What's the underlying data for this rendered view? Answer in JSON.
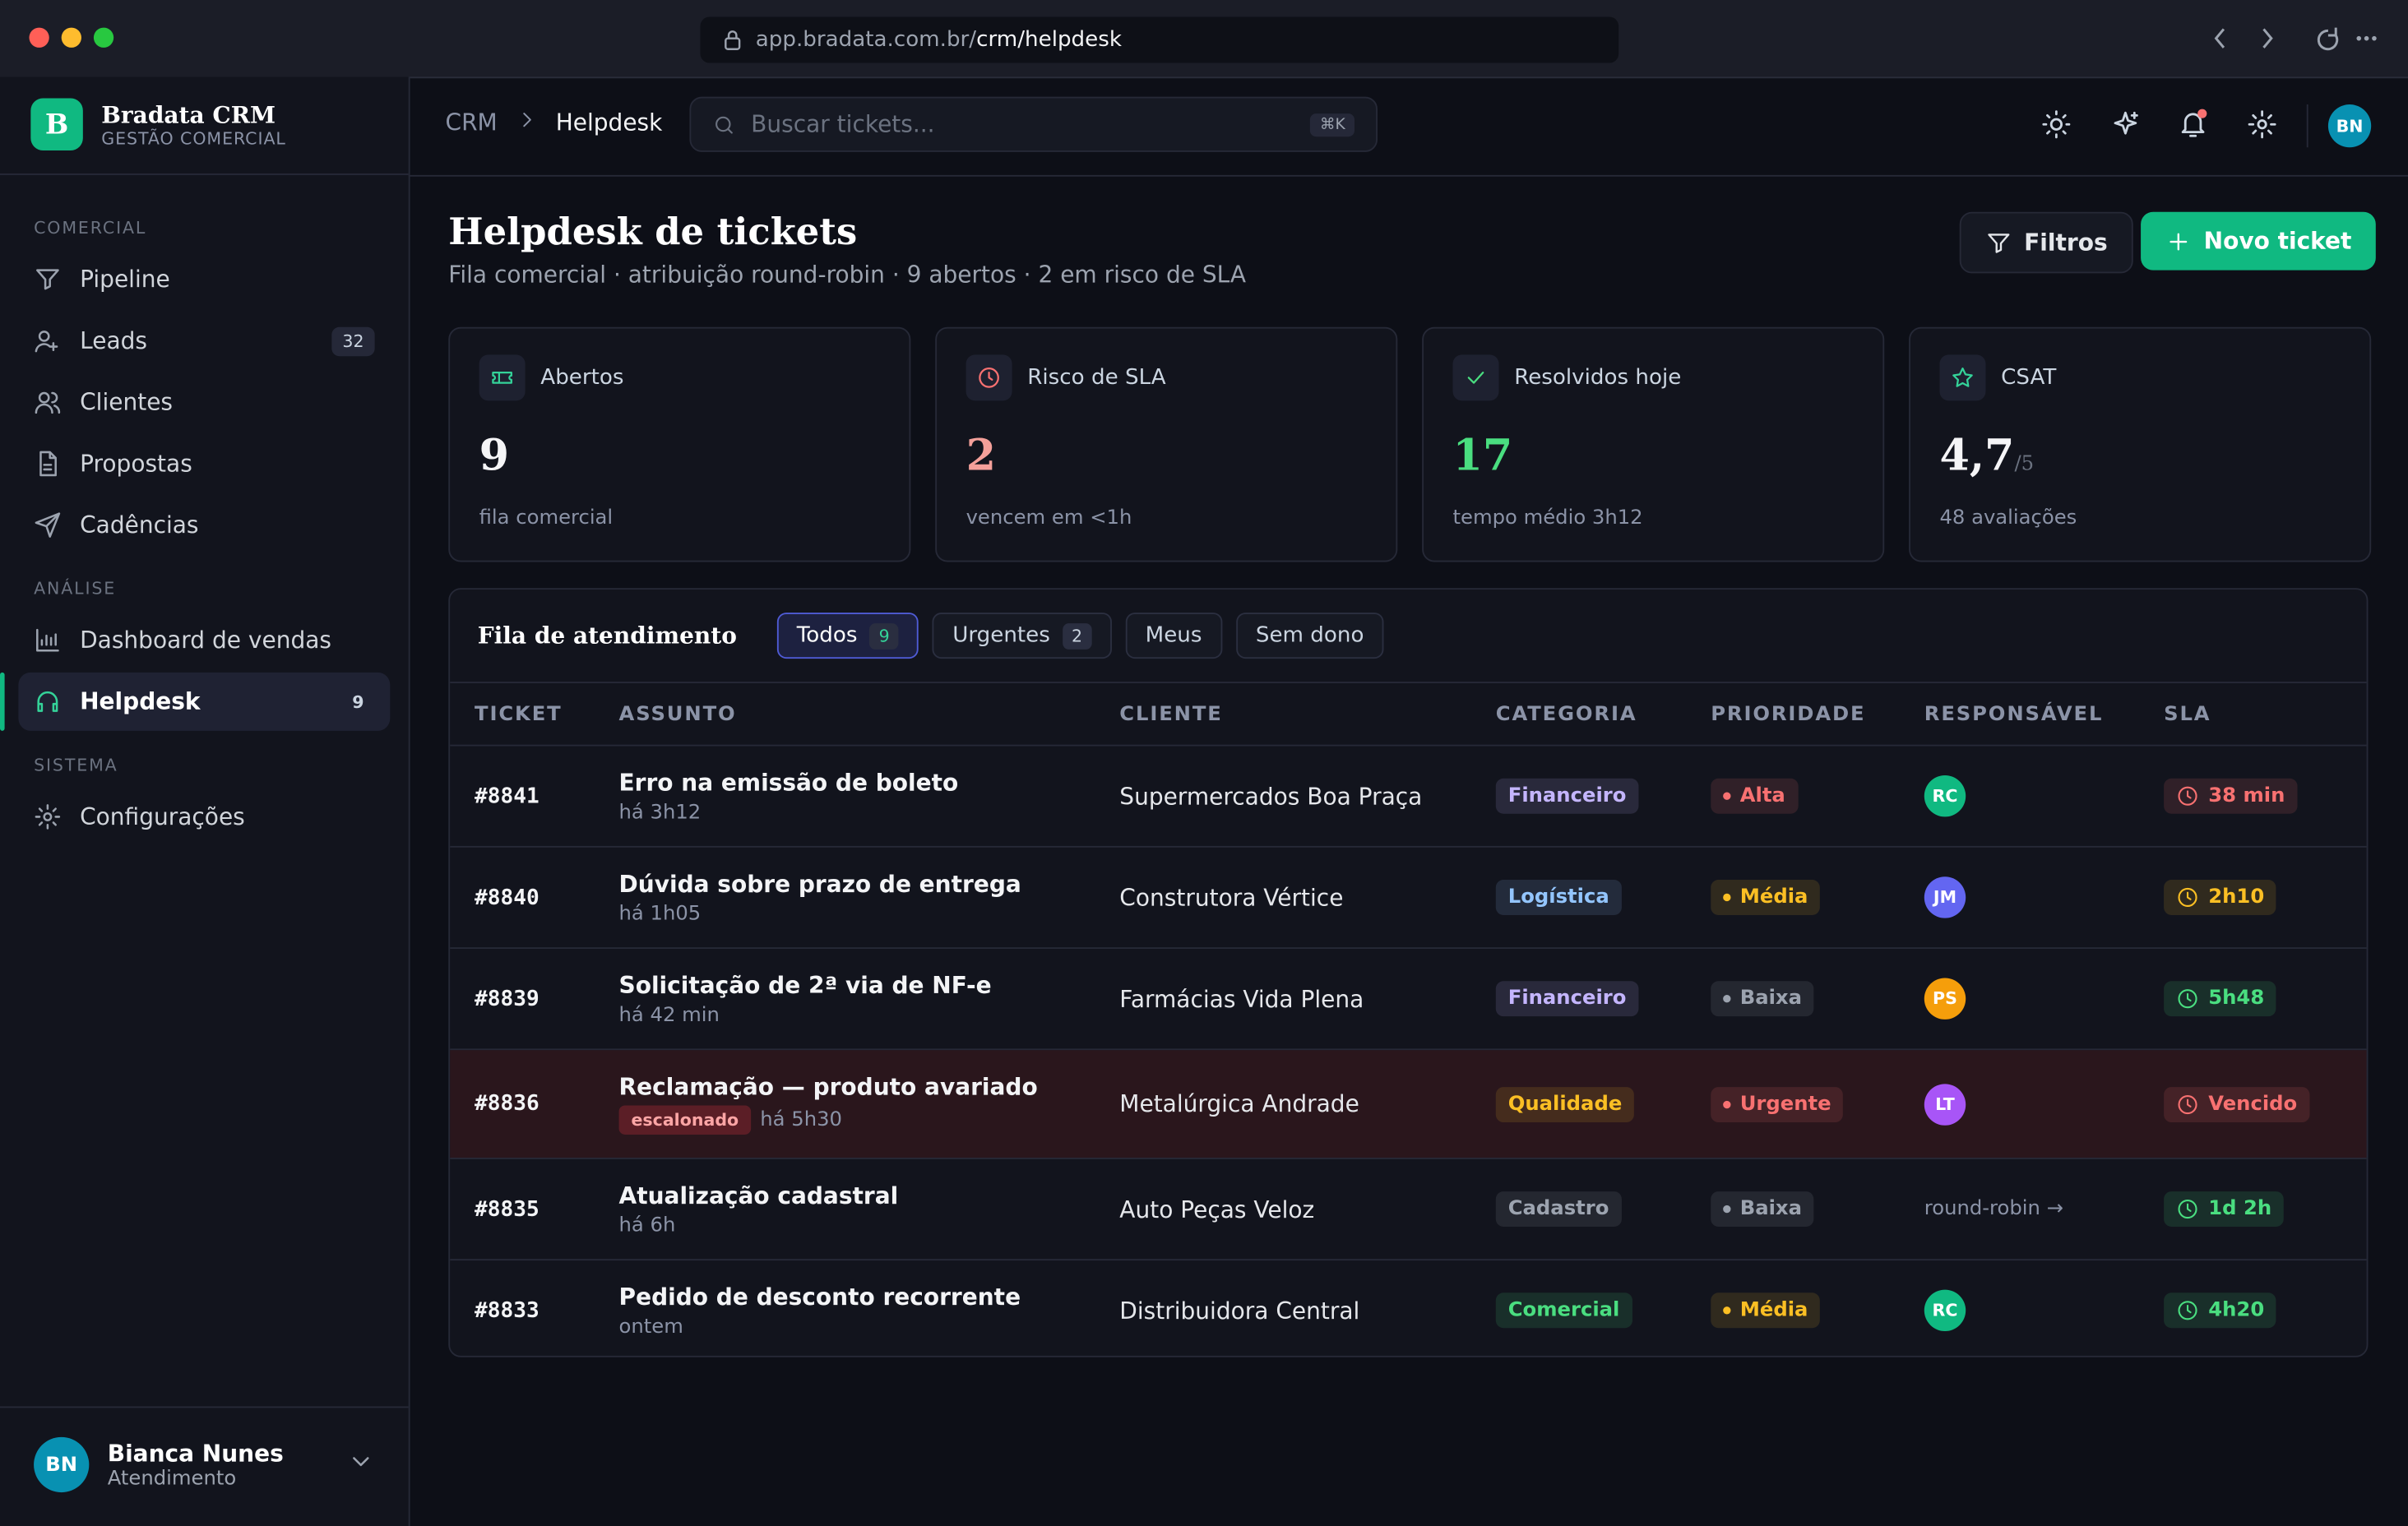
{
  "browser": {
    "url_host": "app.bradata.com.br/",
    "url_path": "crm/helpdesk"
  },
  "brand": {
    "logo": "B",
    "name": "Bradata CRM",
    "tagline": "GESTÃO COMERCIAL"
  },
  "sidebar": {
    "sections": [
      {
        "title": "COMERCIAL",
        "items": [
          {
            "label": "Pipeline"
          },
          {
            "label": "Leads",
            "badge": "32"
          },
          {
            "label": "Clientes"
          },
          {
            "label": "Propostas"
          },
          {
            "label": "Cadências"
          }
        ]
      },
      {
        "title": "ANÁLISE",
        "items": [
          {
            "label": "Dashboard de vendas"
          },
          {
            "label": "Helpdesk",
            "badge": "9",
            "active": true
          }
        ]
      },
      {
        "title": "SISTEMA",
        "items": [
          {
            "label": "Configurações"
          }
        ]
      }
    ]
  },
  "user": {
    "initials": "BN",
    "name": "Bianca Nunes",
    "role": "Atendimento"
  },
  "topbar": {
    "breadcrumb": [
      "CRM",
      "Helpdesk"
    ],
    "search_placeholder": "Buscar tickets...",
    "shortcut": "⌘K",
    "avatar": "BN"
  },
  "header": {
    "title": "Helpdesk de tickets",
    "subtitle": "Fila comercial · atribuição round-robin · 9 abertos · 2 em risco de SLA",
    "filters": "Filtros",
    "new_ticket": "Novo ticket"
  },
  "stats": [
    {
      "label": "Abertos",
      "value": "9",
      "note": "fila comercial",
      "color": "#f5f5f7",
      "icon_color": "#34d399"
    },
    {
      "label": "Risco de SLA",
      "value": "2",
      "note": "vencem em <1h",
      "color": "#f4a09a",
      "icon_color": "#f87171"
    },
    {
      "label": "Resolvidos hoje",
      "value": "17",
      "note": "tempo médio 3h12",
      "color": "#4ade80",
      "icon_color": "#4ade80"
    },
    {
      "label": "CSAT",
      "value": "4,7",
      "suffix": "/5",
      "note": "48 avaliações",
      "color": "#f5f5f7",
      "icon_color": "#34d399"
    }
  ],
  "queue": {
    "title": "Fila de atendimento",
    "tabs": [
      {
        "label": "Todos",
        "count": "9",
        "active": true
      },
      {
        "label": "Urgentes",
        "count": "2"
      },
      {
        "label": "Meus"
      },
      {
        "label": "Sem dono"
      }
    ],
    "columns": [
      "TICKET",
      "ASSUNTO",
      "CLIENTE",
      "CATEGORIA",
      "PRIORIDADE",
      "RESPONSÁVEL",
      "SLA"
    ],
    "rows": [
      {
        "id": "#8841",
        "subject": "Erro na emissão de boleto",
        "age": "há 3h12",
        "client": "Supermercados Boa Praça",
        "category": "Financeiro",
        "category_color": "#c4b5fd",
        "priority": "Alta",
        "priority_color": "#f87171",
        "owner": {
          "initials": "RC",
          "color": "#10b981"
        },
        "sla": "38 min",
        "sla_color": "#f87171"
      },
      {
        "id": "#8840",
        "subject": "Dúvida sobre prazo de entrega",
        "age": "há 1h05",
        "client": "Construtora Vértice",
        "category": "Logística",
        "category_color": "#93c5fd",
        "priority": "Média",
        "priority_color": "#fbbf24",
        "owner": {
          "initials": "JM",
          "color": "#6366f1"
        },
        "sla": "2h10",
        "sla_color": "#fbbf24"
      },
      {
        "id": "#8839",
        "subject": "Solicitação de 2ª via de NF-e",
        "age": "há 42 min",
        "client": "Farmácias Vida Plena",
        "category": "Financeiro",
        "category_color": "#c4b5fd",
        "priority": "Baixa",
        "priority_color": "#9ca3af",
        "owner": {
          "initials": "PS",
          "color": "#f59e0b"
        },
        "sla": "5h48",
        "sla_color": "#4ade80"
      },
      {
        "id": "#8836",
        "subject": "Reclamação — produto avariado",
        "tag": "escalonado",
        "age": "há 5h30",
        "client": "Metalúrgica Andrade",
        "category": "Qualidade",
        "category_color": "#fbbf24",
        "priority": "Urgente",
        "priority_color": "#f87171",
        "owner": {
          "initials": "LT",
          "color": "#a855f7"
        },
        "sla": "Vencido",
        "sla_color": "#f87171",
        "highlight": true
      },
      {
        "id": "#8835",
        "subject": "Atualização cadastral",
        "age": "há 6h",
        "client": "Auto Peças Veloz",
        "category": "Cadastro",
        "category_color": "#9ca3af",
        "priority": "Baixa",
        "priority_color": "#9ca3af",
        "owner": {
          "text": "round-robin →"
        },
        "sla": "1d 2h",
        "sla_color": "#4ade80"
      },
      {
        "id": "#8833",
        "subject": "Pedido de desconto recorrente",
        "age": "ontem",
        "client": "Distribuidora Central",
        "category": "Comercial",
        "category_color": "#4ade80",
        "priority": "Média",
        "priority_color": "#fbbf24",
        "owner": {
          "initials": "RC",
          "color": "#10b981"
        },
        "sla": "4h20",
        "sla_color": "#4ade80"
      }
    ]
  }
}
